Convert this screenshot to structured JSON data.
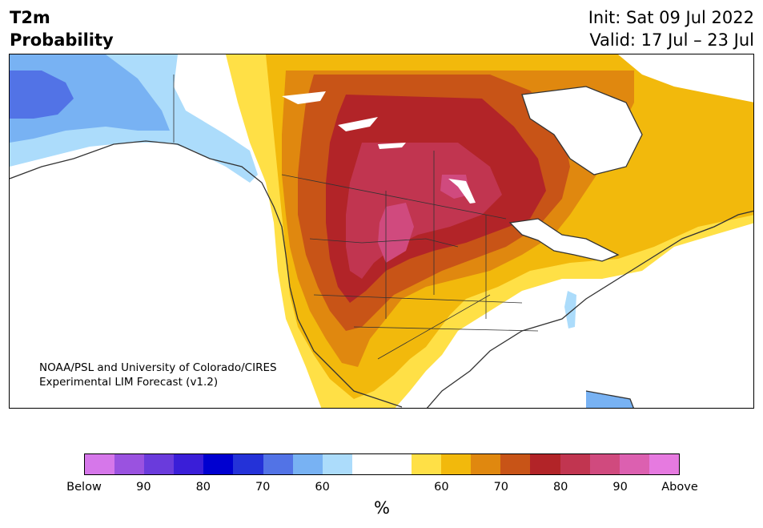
{
  "header": {
    "title_line1": "T2m",
    "title_line2": "Probability",
    "init": "Init: Sat 09 Jul 2022",
    "valid": "Valid: 17 Jul – 23 Jul"
  },
  "credit": {
    "line1": "NOAA/PSL and University of Colorado/CIRES",
    "line2": "Experimental LIM Forecast (v1.2)"
  },
  "colors": {
    "land_outline": "#333333",
    "below_60": "#acdcfb",
    "below_70": "#78b2f3",
    "below_80": "#5273e6",
    "above_60": "#ffe046",
    "above_65": "#f2b90c",
    "above_70": "#e0880f",
    "above_75": "#c85417",
    "above_80": "#b22428",
    "above_85": "#c13550",
    "above_90": "#d04a7e"
  },
  "colorbar": {
    "segments": [
      "#d677ea",
      "#9a52e0",
      "#6a3bdc",
      "#3a1ed8",
      "#0000d0",
      "#2432d8",
      "#5273e6",
      "#78b2f3",
      "#acdcfb",
      "#ffffff",
      "#ffffff",
      "#ffe046",
      "#f2b90c",
      "#e0880f",
      "#c85417",
      "#b22428",
      "#c13550",
      "#d04a7e",
      "#dc60b0",
      "#e67ae0"
    ],
    "tick_labels": [
      "Below",
      "90",
      "80",
      "70",
      "60",
      "60",
      "70",
      "80",
      "90",
      "Above"
    ],
    "unit": "%"
  }
}
